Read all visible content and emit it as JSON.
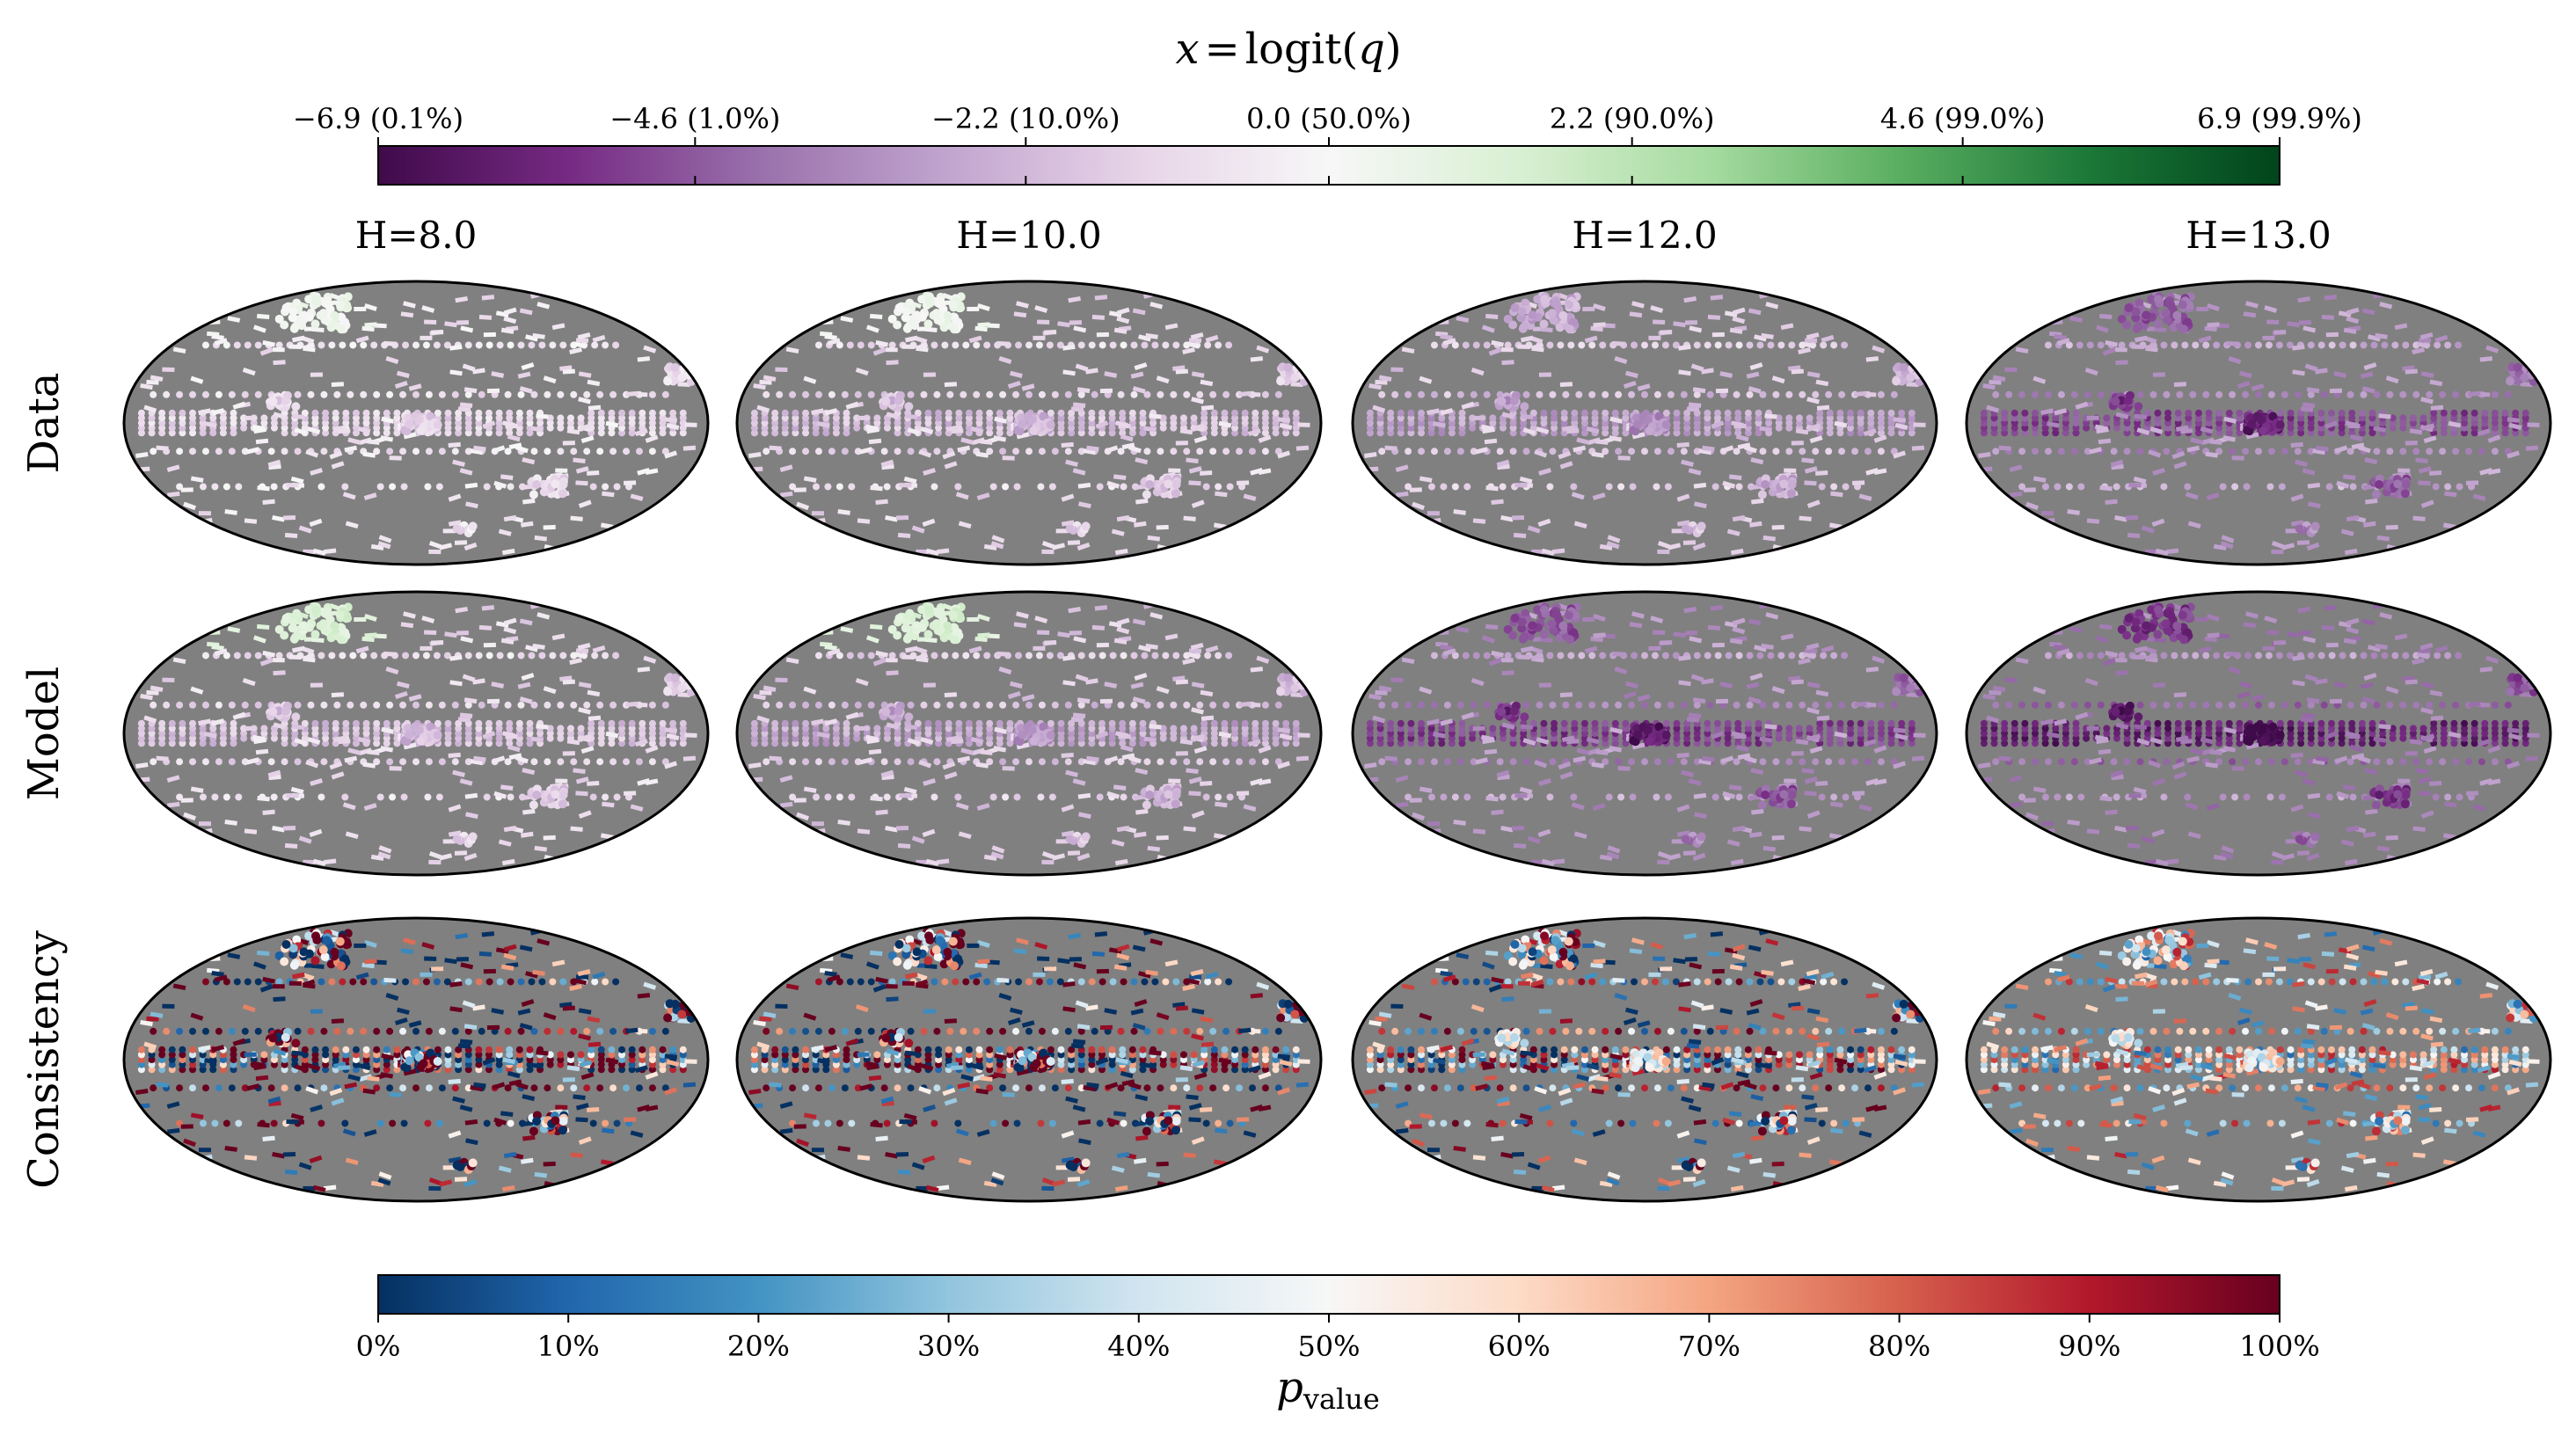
{
  "top_colorbar": {
    "title_var": "x",
    "title_eq": "=",
    "title_func": "logit(",
    "title_arg": "q",
    "title_close": ")",
    "cmap": [
      "#3f0a4a",
      "#762a83",
      "#9970ab",
      "#c2a5cf",
      "#e7d4e8",
      "#f7f7f7",
      "#d9f0d3",
      "#a6dba0",
      "#5aae61",
      "#1b7837",
      "#00441b"
    ],
    "ticks": [
      {
        "value": -6.9,
        "label": "−6.9 (0.1%)"
      },
      {
        "value": -4.6,
        "label": "−4.6 (1.0%)"
      },
      {
        "value": -2.2,
        "label": "−2.2 (10.0%)"
      },
      {
        "value": 0.0,
        "label": "0.0 (50.0%)"
      },
      {
        "value": 2.2,
        "label": "2.2 (90.0%)"
      },
      {
        "value": 4.6,
        "label": "4.6 (99.0%)"
      },
      {
        "value": 6.9,
        "label": "6.9 (99.9%)"
      }
    ],
    "range": [
      -6.9,
      6.9
    ]
  },
  "bottom_colorbar": {
    "title_main": "p",
    "title_sub": "value",
    "cmap": [
      "#053061",
      "#2166ac",
      "#4393c3",
      "#92c5de",
      "#d1e5f0",
      "#f7f7f7",
      "#fddbc7",
      "#f4a582",
      "#d6604d",
      "#b2182b",
      "#67001f"
    ],
    "ticks": [
      {
        "value": 0,
        "label": "0%"
      },
      {
        "value": 10,
        "label": "10%"
      },
      {
        "value": 20,
        "label": "20%"
      },
      {
        "value": 30,
        "label": "30%"
      },
      {
        "value": 40,
        "label": "40%"
      },
      {
        "value": 50,
        "label": "50%"
      },
      {
        "value": 60,
        "label": "60%"
      },
      {
        "value": 70,
        "label": "70%"
      },
      {
        "value": 80,
        "label": "80%"
      },
      {
        "value": 90,
        "label": "90%"
      },
      {
        "value": 100,
        "label": "100%"
      }
    ],
    "range": [
      0,
      100
    ]
  },
  "columns": [
    {
      "title": "H=8.0",
      "data_level": -1.2,
      "model_level": -1.8,
      "pval_spread": 0.9
    },
    {
      "title": "H=10.0",
      "data_level": -1.9,
      "model_level": -2.6,
      "pval_spread": 0.8
    },
    {
      "title": "H=12.0",
      "data_level": -2.8,
      "model_level": -5.2,
      "pval_spread": 0.6
    },
    {
      "title": "H=13.0",
      "data_level": -5.0,
      "model_level": -6.0,
      "pval_spread": 0.4
    }
  ],
  "rows": [
    {
      "label": "Data"
    },
    {
      "label": "Model"
    },
    {
      "label": "Consistency"
    }
  ],
  "background_color": "#808080",
  "chart_data": {
    "type": "heatmap",
    "projection": "mollweide",
    "panels": "3 rows x 4 columns",
    "row_labels": [
      "Data",
      "Model",
      "Consistency"
    ],
    "column_labels": [
      "H=8.0",
      "H=10.0",
      "H=12.0",
      "H=13.0"
    ],
    "top_colorbar_range": [
      -6.9,
      6.9
    ],
    "bottom_colorbar_range_percent": [
      0,
      100
    ]
  }
}
